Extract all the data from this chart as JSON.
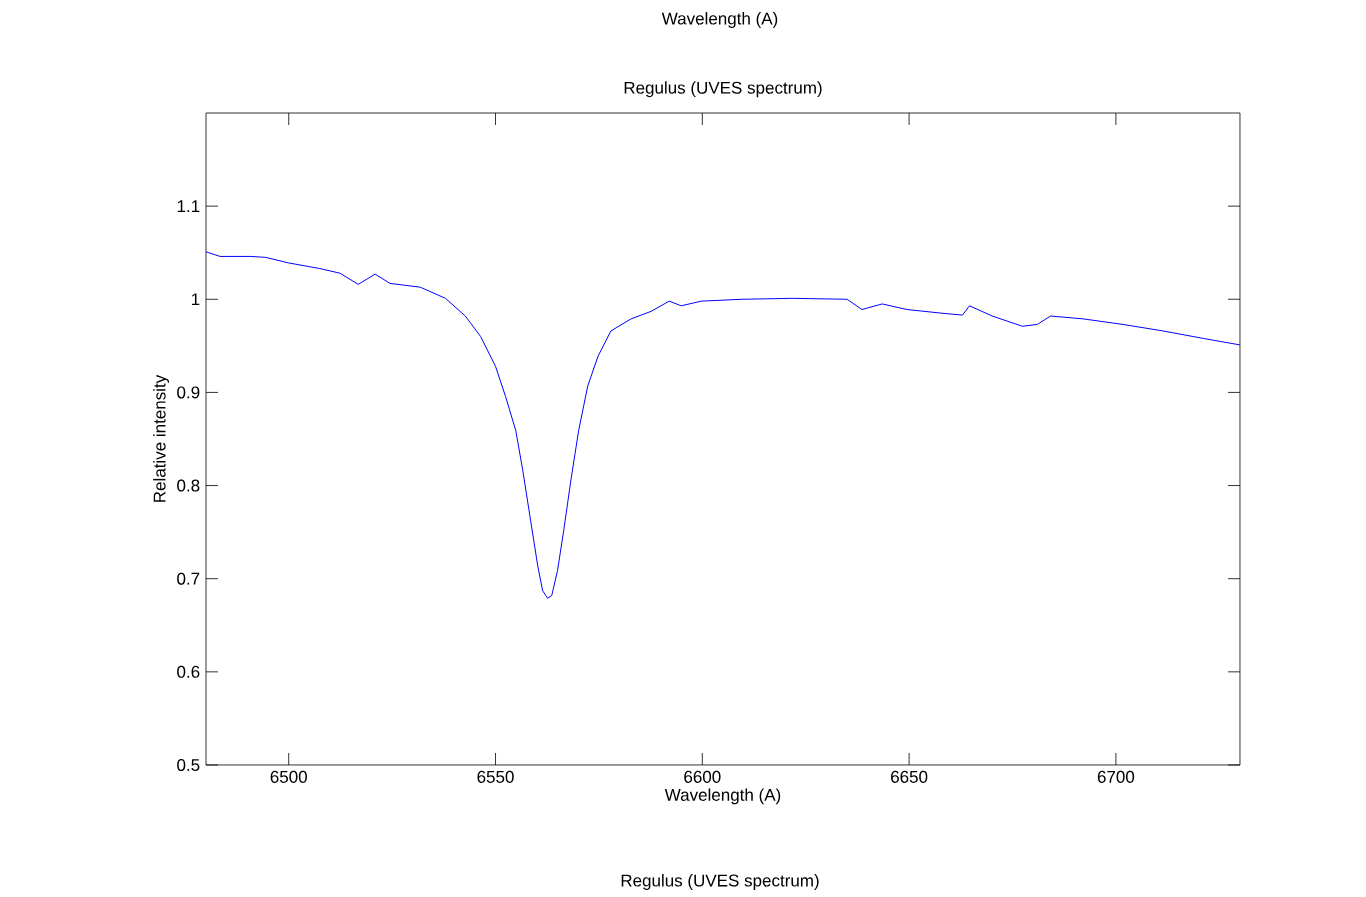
{
  "chart_data": {
    "type": "line",
    "title": "Regulus (UVES spectrum)",
    "xlabel": "Wavelength (A)",
    "ylabel": "Relative intensity",
    "annotations": [
      "Wavelength (A)",
      "Regulus (UVES spectrum)"
    ],
    "x": [
      6480,
      6483.4,
      6490.7,
      6494.4,
      6500,
      6507.5,
      6512.4,
      6516.8,
      6520.9,
      6524.5,
      6531.8,
      6537.9,
      6542.7,
      6546.4,
      6550,
      6552.4,
      6554.9,
      6556.6,
      6558.5,
      6560.2,
      6561.4,
      6562.6,
      6563.6,
      6565,
      6566.5,
      6568.2,
      6570.1,
      6572.3,
      6574.8,
      6577.9,
      6582.8,
      6587.6,
      6592,
      6594.9,
      6599.8,
      6609.6,
      6621.7,
      6635,
      6638.6,
      6643.5,
      6649.5,
      6658,
      6662.9,
      6664.6,
      6670.1,
      6677.4,
      6681,
      6684.2,
      6692,
      6701.7,
      6711.4,
      6721.1,
      6730
    ],
    "series": [
      {
        "color": "#0000ff",
        "values": [
          1.051,
          1.046,
          1.046,
          1.045,
          1.039,
          1.033,
          1.028,
          1.016,
          1.027,
          1.017,
          1.013,
          1.001,
          0.982,
          0.96,
          0.928,
          0.896,
          0.859,
          0.816,
          0.762,
          0.714,
          0.687,
          0.679,
          0.682,
          0.709,
          0.752,
          0.805,
          0.859,
          0.907,
          0.939,
          0.966,
          0.979,
          0.987,
          0.998,
          0.993,
          0.998,
          1.0,
          1.001,
          1.0,
          0.989,
          0.995,
          0.989,
          0.985,
          0.983,
          0.993,
          0.982,
          0.971,
          0.973,
          0.982,
          0.979,
          0.973,
          0.966,
          0.958,
          0.951
        ]
      }
    ],
    "xlim": [
      6480,
      6730
    ],
    "ylim": [
      0.5,
      1.2
    ],
    "xticks": [
      6500,
      6550,
      6600,
      6650,
      6700
    ],
    "yticks": [
      0.5,
      0.6,
      0.7,
      0.8,
      0.9,
      1,
      1.1
    ],
    "grid": false,
    "marker": "none",
    "line_style": "solid"
  }
}
